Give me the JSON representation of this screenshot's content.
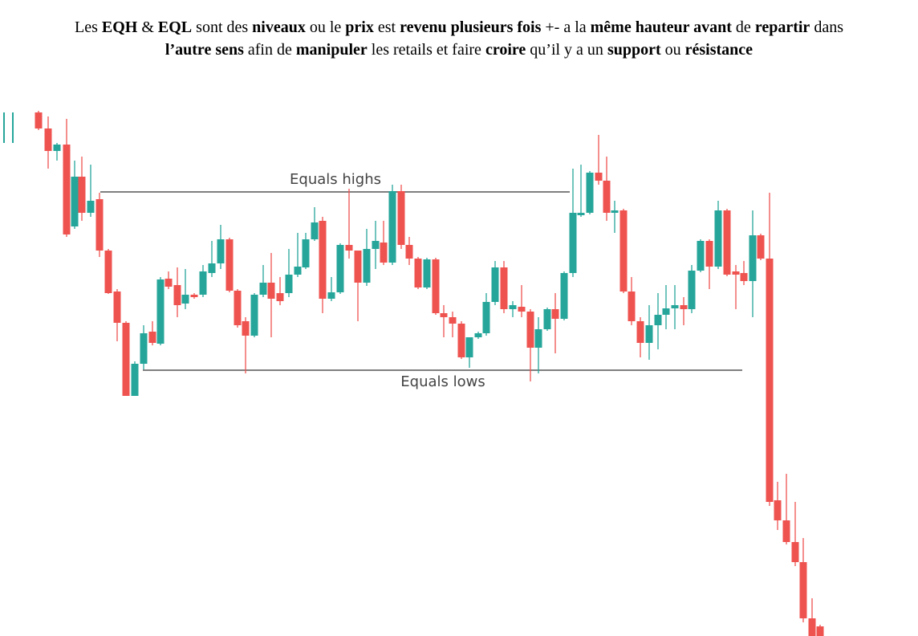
{
  "paragraph": [
    {
      "text": "Les ",
      "bold": false
    },
    {
      "text": "EQH",
      "bold": true
    },
    {
      "text": " & ",
      "bold": false
    },
    {
      "text": "EQL",
      "bold": true
    },
    {
      "text": " sont des ",
      "bold": false
    },
    {
      "text": "niveaux",
      "bold": true
    },
    {
      "text": " ou le ",
      "bold": false
    },
    {
      "text": "prix",
      "bold": true
    },
    {
      "text": " est ",
      "bold": false
    },
    {
      "text": "revenu plusieurs fois",
      "bold": true
    },
    {
      "text": " +- a la ",
      "bold": false
    },
    {
      "text": "même hauteur avant",
      "bold": true
    },
    {
      "text": " de ",
      "bold": false
    },
    {
      "text": "repartir",
      "bold": true
    },
    {
      "text": " dans ",
      "bold": false
    },
    {
      "text": "l’autre sens",
      "bold": true
    },
    {
      "text": " afin de ",
      "bold": false
    },
    {
      "text": "manipuler",
      "bold": true
    },
    {
      "text": " les retails et faire ",
      "bold": false
    },
    {
      "text": "croire",
      "bold": true
    },
    {
      "text": " qu’il y a un ",
      "bold": false
    },
    {
      "text": "support",
      "bold": true
    },
    {
      "text": " ou ",
      "bold": false
    },
    {
      "text": "résistance",
      "bold": true
    }
  ],
  "annotations": {
    "high": "Equals highs",
    "low": "Equals lows"
  }
}
